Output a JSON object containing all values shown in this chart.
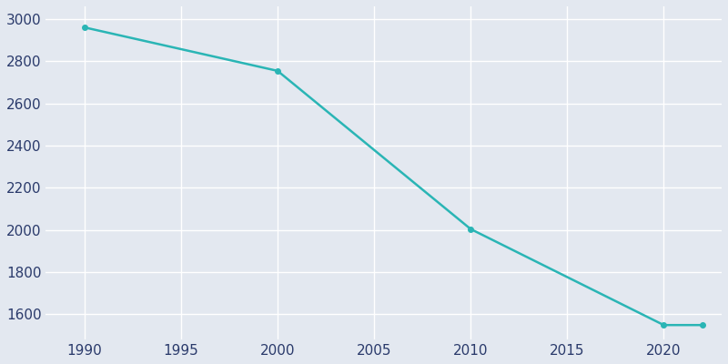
{
  "years": [
    1990,
    2000,
    2010,
    2020,
    2022
  ],
  "population": [
    2960,
    2754,
    2004,
    1549,
    1549
  ],
  "line_color": "#2ab5b5",
  "marker_color": "#2ab5b5",
  "marker_style": "o",
  "marker_size": 4,
  "line_width": 1.8,
  "background_color": "#e3e8f0",
  "grid_color": "#ffffff",
  "tick_label_color": "#2a3a6b",
  "yticks": [
    1600,
    1800,
    2000,
    2200,
    2400,
    2600,
    2800,
    3000
  ],
  "xticks": [
    1990,
    1995,
    2000,
    2005,
    2010,
    2015,
    2020
  ],
  "ylim": [
    1480,
    3060
  ],
  "xlim": [
    1988,
    2023
  ]
}
